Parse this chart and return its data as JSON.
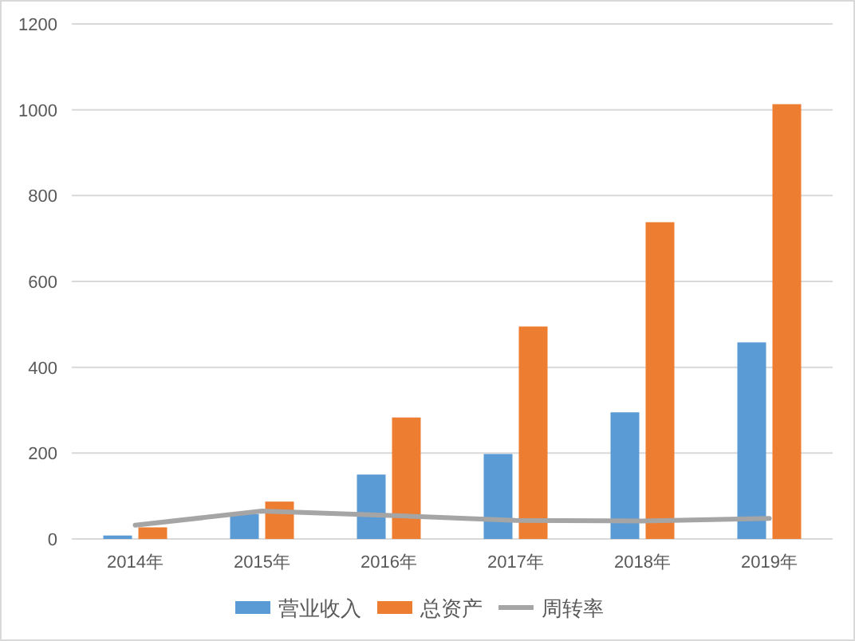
{
  "chart_data": {
    "type": "bar",
    "categories": [
      "2014年",
      "2015年",
      "2016年",
      "2017年",
      "2018年",
      "2019年"
    ],
    "series": [
      {
        "name": "营业收入",
        "color": "#5b9bd5",
        "values": [
          8,
          58,
          150,
          198,
          295,
          458
        ]
      },
      {
        "name": "总资产",
        "color": "#ed7d31",
        "values": [
          27,
          87,
          283,
          495,
          738,
          1013
        ]
      },
      {
        "name": "周转率",
        "type": "line",
        "color": "#a5a5a5",
        "values": [
          32,
          65,
          55,
          43,
          42,
          48
        ]
      }
    ],
    "ylim": [
      0,
      1200
    ],
    "yticks": [
      0,
      200,
      400,
      600,
      800,
      1000,
      1200
    ],
    "grid": "y",
    "legend": "bottom",
    "marker": "none"
  }
}
